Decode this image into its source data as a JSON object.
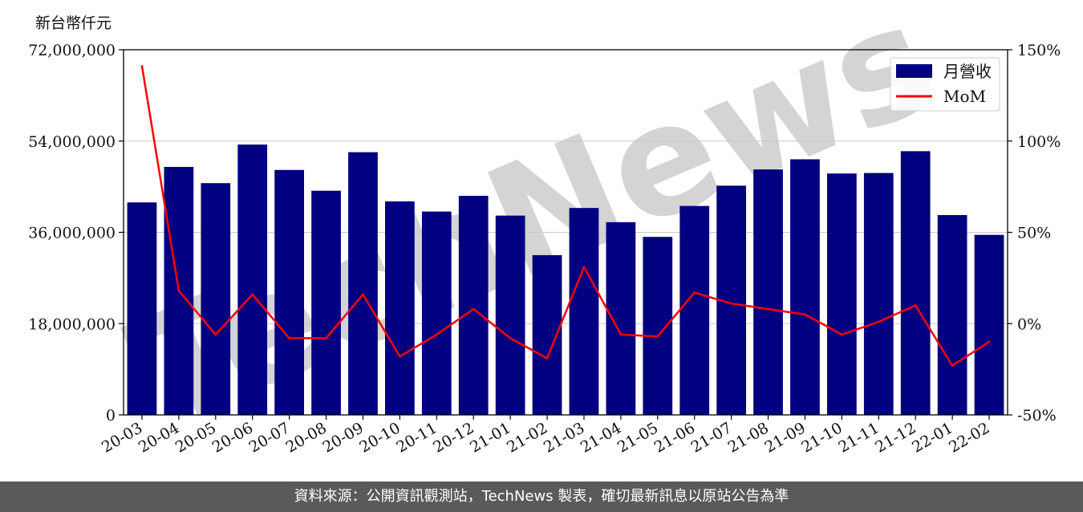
{
  "chart_data": {
    "type": "bar",
    "unit_label": "新台幣仟元",
    "categories": [
      "20-03",
      "20-04",
      "20-05",
      "20-06",
      "20-07",
      "20-08",
      "20-09",
      "20-10",
      "20-11",
      "20-12",
      "21-01",
      "21-02",
      "21-03",
      "21-04",
      "21-05",
      "21-06",
      "21-07",
      "21-08",
      "21-09",
      "21-10",
      "21-11",
      "21-12",
      "22-01",
      "22-02"
    ],
    "series": [
      {
        "name": "月營收",
        "kind": "bar",
        "axis": "left",
        "color": "#000080",
        "values": [
          41900000,
          48900000,
          45700000,
          53300000,
          48300000,
          44200000,
          51800000,
          42100000,
          40100000,
          43200000,
          39300000,
          31500000,
          40800000,
          38000000,
          35100000,
          41200000,
          45200000,
          48400000,
          50400000,
          47600000,
          47700000,
          52000000,
          39400000,
          35500000
        ]
      },
      {
        "name": "MoM",
        "kind": "line",
        "axis": "right",
        "color": "#ff0000",
        "values": [
          141,
          18,
          -6,
          16,
          -8,
          -8,
          16,
          -18,
          -6,
          8,
          -8,
          -19,
          31,
          -6,
          -7,
          17,
          11,
          8,
          5,
          -6,
          1,
          10,
          -23,
          -10
        ]
      }
    ],
    "left_axis": {
      "ylim": [
        0,
        72000000
      ],
      "ticks": [
        "0",
        "18,000,000",
        "36,000,000",
        "54,000,000",
        "72,000,000"
      ]
    },
    "right_axis": {
      "ylim": [
        -50,
        150
      ],
      "ticks": [
        "-50%",
        "0%",
        "50%",
        "100%",
        "150%"
      ]
    },
    "grid": true,
    "legend_position": "top-right",
    "watermark": "TechNews"
  },
  "footer": {
    "source_text": "資料來源：公開資訊觀測站，TechNews 製表，確切最新訊息以原站公告為準"
  }
}
